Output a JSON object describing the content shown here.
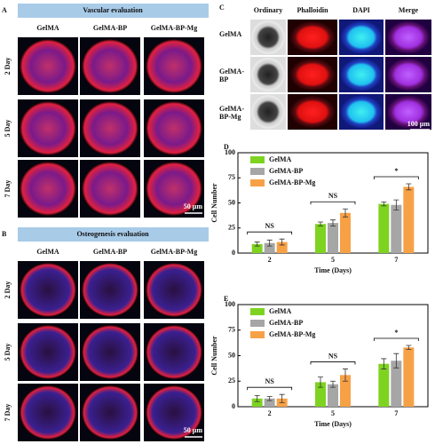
{
  "panels": {
    "A": {
      "letter": "A",
      "header": "Vascular evaluation",
      "columns": [
        "GelMA",
        "GelMA-BP",
        "GelMA-BP-Mg"
      ],
      "rows": [
        "2 Day",
        "5 Day",
        "7 Day"
      ],
      "scale": "50 µm"
    },
    "B": {
      "letter": "B",
      "header": "Osteogenesis evaluation",
      "columns": [
        "GelMA",
        "GelMA-BP",
        "GelMA-BP-Mg"
      ],
      "rows": [
        "2 Day",
        "5 Day",
        "7 Day"
      ],
      "scale": "50 µm"
    },
    "C": {
      "letter": "C",
      "columns": [
        "Ordinary",
        "Phalloidin",
        "DAPI",
        "Merge"
      ],
      "rows": [
        "GelMA",
        "GelMA-BP",
        "GelMA-BP-Mg"
      ],
      "scale": "100 µm"
    }
  },
  "chart_data": [
    {
      "type": "bar",
      "label": "D",
      "xlabel": "Time (Days)",
      "ylabel": "Cell Number",
      "categories": [
        "2",
        "5",
        "7"
      ],
      "ylim": [
        0,
        100
      ],
      "yticks": [
        0,
        25,
        50,
        75,
        100
      ],
      "series": [
        {
          "name": "GelMA",
          "color": "#7ed321",
          "values": [
            9,
            29,
            49
          ],
          "errors": [
            2,
            2,
            2
          ]
        },
        {
          "name": "GelMA-BP",
          "color": "#a6a6a6",
          "values": [
            10,
            30,
            48
          ],
          "errors": [
            3,
            3,
            5
          ]
        },
        {
          "name": "GelMA-BP-Mg",
          "color": "#f7a146",
          "values": [
            11,
            40,
            66
          ],
          "errors": [
            3,
            4,
            3
          ]
        }
      ],
      "annotations": [
        "NS",
        "NS",
        "*"
      ],
      "legend": "upper left"
    },
    {
      "type": "bar",
      "label": "E",
      "xlabel": "Time (Days)",
      "ylabel": "Cell Number",
      "categories": [
        "2",
        "5",
        "7"
      ],
      "ylim": [
        0,
        100
      ],
      "yticks": [
        0,
        25,
        50,
        75,
        100
      ],
      "series": [
        {
          "name": "GelMA",
          "color": "#7ed321",
          "values": [
            8,
            24,
            42
          ],
          "errors": [
            3,
            5,
            5
          ]
        },
        {
          "name": "GelMA-BP",
          "color": "#a6a6a6",
          "values": [
            8,
            22,
            45
          ],
          "errors": [
            2,
            3,
            7
          ]
        },
        {
          "name": "GelMA-BP-Mg",
          "color": "#f7a146",
          "values": [
            8,
            31,
            58
          ],
          "errors": [
            4,
            6,
            2
          ]
        }
      ],
      "annotations": [
        "NS",
        "NS",
        "*"
      ],
      "legend": "upper left"
    }
  ]
}
